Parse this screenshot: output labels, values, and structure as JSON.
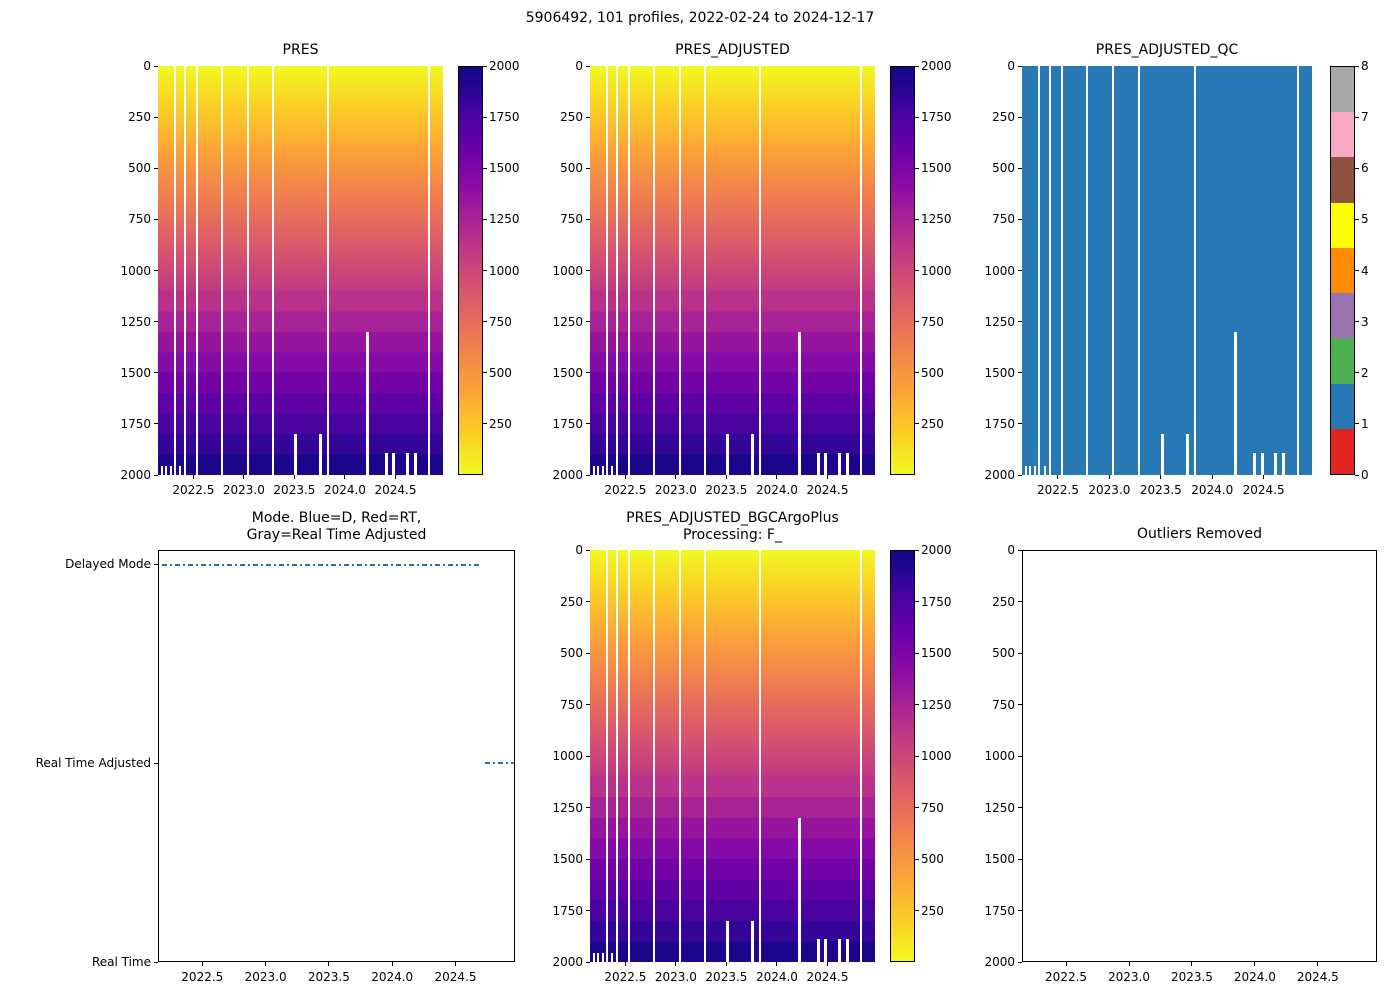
{
  "figure": {
    "float_id": "5906492",
    "n_profiles": 101,
    "start_date": "2022-02-24",
    "end_date": "2024-12-17"
  },
  "chart_data": {
    "type": "heatmap",
    "title": "5906492, 101 profiles, 2022-02-24 to 2024-12-17",
    "x_axis": {
      "label": "",
      "range": [
        2022.15,
        2024.97
      ],
      "ticks": [
        "2022.5",
        "2023.0",
        "2023.5",
        "2024.0",
        "2024.5"
      ]
    },
    "pressure_axis": {
      "label": "",
      "range": [
        0,
        2000
      ],
      "inverted": true,
      "ticks": [
        "0",
        "250",
        "500",
        "750",
        "1000",
        "1250",
        "1500",
        "1750",
        "2000"
      ]
    },
    "colorbar_range": [
      0,
      2000
    ],
    "colorbar_ticks": [
      2000,
      1750,
      1500,
      1250,
      1000,
      750,
      500,
      250
    ],
    "plasma_stops": [
      {
        "t": 0.0,
        "c": "#0d0887"
      },
      {
        "t": 0.1,
        "c": "#41049d"
      },
      {
        "t": 0.2,
        "c": "#6a00a8"
      },
      {
        "t": 0.3,
        "c": "#8f0da4"
      },
      {
        "t": 0.4,
        "c": "#b12a90"
      },
      {
        "t": 0.5,
        "c": "#cc4778"
      },
      {
        "t": 0.6,
        "c": "#e16462"
      },
      {
        "t": 0.7,
        "c": "#f2844b"
      },
      {
        "t": 0.8,
        "c": "#fca636"
      },
      {
        "t": 0.9,
        "c": "#fcce25"
      },
      {
        "t": 1.0,
        "c": "#f0f921"
      }
    ],
    "panels": [
      {
        "title": "PRES",
        "kind": "pressure_heatmap",
        "note": "color encodes pressure: 0 dbar yellow at surface to 2000 dbar dark blue at depth"
      },
      {
        "title": "PRES_ADJUSTED",
        "kind": "pressure_heatmap"
      },
      {
        "title": "PRES_ADJUSTED_QC",
        "kind": "qc_heatmap",
        "fill_qc_value": 1,
        "fill_color": "#2878b5",
        "qc_scale": [
          {
            "value": 8,
            "color": "#a8a8a8"
          },
          {
            "value": 7,
            "color": "#f9a9c4"
          },
          {
            "value": 6,
            "color": "#8f5241"
          },
          {
            "value": 5,
            "color": "#ffff00"
          },
          {
            "value": 4,
            "color": "#ff8b00"
          },
          {
            "value": 3,
            "color": "#9b72b0"
          },
          {
            "value": 2,
            "color": "#4caf50"
          },
          {
            "value": 1,
            "color": "#2878b5"
          },
          {
            "value": 0,
            "color": "#e02421"
          }
        ]
      },
      {
        "title": "Mode. Blue=D, Red=RT,\nGray=Real Time Adjusted",
        "kind": "mode_timeline",
        "categories": [
          "Delayed Mode",
          "Real Time Adjusted",
          "Real Time"
        ],
        "line_color": "#1f77b4",
        "line_style": "dash-dot",
        "segments": [
          {
            "category": "Delayed Mode",
            "start": 2022.17,
            "end": 2024.7
          },
          {
            "category": "Real Time Adjusted",
            "start": 2024.74,
            "end": 2024.97
          }
        ]
      },
      {
        "title": "PRES_ADJUSTED_BGCArgoPlus\nProcessing: F_",
        "kind": "pressure_heatmap"
      },
      {
        "title": "Outliers Removed",
        "kind": "empty"
      }
    ],
    "missing_profiles": {
      "full_gap_times": [
        2022.31,
        2022.41,
        2022.53,
        2022.77,
        2023.03,
        2023.28,
        2023.82,
        2024.82
      ],
      "partial_gaps": [
        {
          "time": 2023.5,
          "from_pressure": 1800
        },
        {
          "time": 2023.74,
          "from_pressure": 1800
        },
        {
          "time": 2024.21,
          "from_pressure": 1300
        },
        {
          "time": 2024.4,
          "from_pressure": 1890
        },
        {
          "time": 2024.47,
          "from_pressure": 1890
        },
        {
          "time": 2024.6,
          "from_pressure": 1890
        },
        {
          "time": 2024.68,
          "from_pressure": 1890
        }
      ],
      "shallow_bottom_marks": [
        {
          "time": 2022.18,
          "from_pressure": 1955
        },
        {
          "time": 2022.22,
          "from_pressure": 1955
        },
        {
          "time": 2022.27,
          "from_pressure": 1955
        },
        {
          "time": 2022.36,
          "from_pressure": 1955
        }
      ]
    }
  }
}
